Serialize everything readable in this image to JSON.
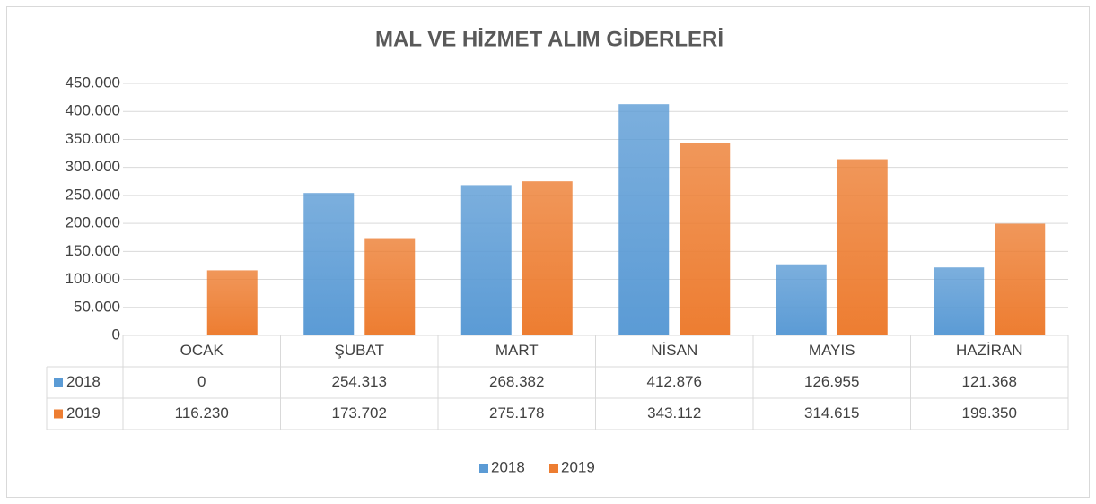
{
  "chart_data": {
    "type": "bar",
    "title": "MAL VE HİZMET ALIM GİDERLERİ",
    "categories": [
      "OCAK",
      "ŞUBAT",
      "MART",
      "NİSAN",
      "MAYIS",
      "HAZİRAN"
    ],
    "series": [
      {
        "name": "2018",
        "color": "#5b9bd5",
        "values": [
          0,
          254313,
          268382,
          412876,
          126955,
          121368
        ],
        "value_labels": [
          "0",
          "254.313",
          "268.382",
          "412.876",
          "126.955",
          "121.368"
        ]
      },
      {
        "name": "2019",
        "color": "#ed7d31",
        "values": [
          116230,
          173702,
          275178,
          343112,
          314615,
          199350
        ],
        "value_labels": [
          "116.230",
          "173.702",
          "275.178",
          "343.112",
          "314.615",
          "199.350"
        ]
      }
    ],
    "ylim": [
      0,
      450000
    ],
    "yticks": [
      0,
      {
        "value": 50000,
        "label": "50.000"
      },
      {
        "value": 100000,
        "label": "100.000"
      },
      {
        "value": 150000,
        "label": "150.000"
      },
      {
        "value": 200000,
        "label": "200.000"
      },
      {
        "value": 250000,
        "label": "250.000"
      },
      {
        "value": 300000,
        "label": "300.000"
      },
      {
        "value": 350000,
        "label": "350.000"
      },
      {
        "value": 400000,
        "label": "400.000"
      },
      {
        "value": 450000,
        "label": "450.000"
      }
    ],
    "grid": true,
    "legend": "bottom",
    "data_table": true
  }
}
